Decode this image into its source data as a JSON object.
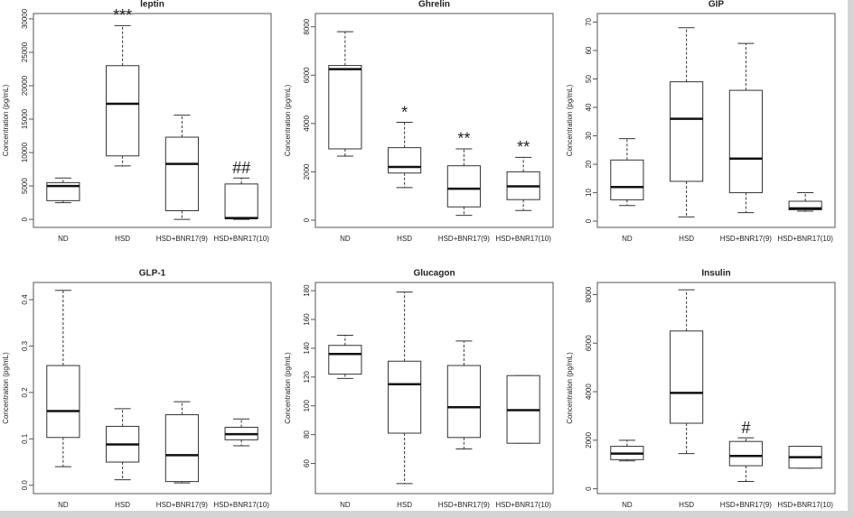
{
  "chart_data": [
    {
      "type": "box",
      "title": "leptin",
      "y_label": "Concentration (pg/mL)",
      "categories": [
        "ND",
        "HSD",
        "HSD+BNR17(9)",
        "HSD+BNR17(10)"
      ],
      "boxes": [
        {
          "whislo": 2500,
          "q1": 2800,
          "med": 5000,
          "q3": 5500,
          "whishi": 6200
        },
        {
          "whislo": 8000,
          "q1": 9500,
          "med": 17300,
          "q3": 23000,
          "whishi": 29000
        },
        {
          "whislo": 0,
          "q1": 1300,
          "med": 8300,
          "q3": 12300,
          "whishi": 15600
        },
        {
          "whislo": 0,
          "q1": 100,
          "med": 200,
          "q3": 5300,
          "whishi": 6200
        }
      ],
      "marks": [
        null,
        "***",
        null,
        "##"
      ],
      "ylim": [
        -1200,
        30800
      ],
      "yticks": [
        0,
        5000,
        10000,
        15000,
        20000,
        25000,
        30000
      ]
    },
    {
      "type": "box",
      "title": "Ghrelin",
      "y_label": "Concentration (pg/mL)",
      "categories": [
        "ND",
        "HSD",
        "HSD+BNR17(9)",
        "HSD+BNR17(10)"
      ],
      "boxes": [
        {
          "whislo": 2650,
          "q1": 2950,
          "med": 6250,
          "q3": 6400,
          "whishi": 7800
        },
        {
          "whislo": 1350,
          "q1": 1950,
          "med": 2200,
          "q3": 3000,
          "whishi": 4050
        },
        {
          "whislo": 200,
          "q1": 550,
          "med": 1300,
          "q3": 2250,
          "whishi": 2950
        },
        {
          "whislo": 400,
          "q1": 850,
          "med": 1400,
          "q3": 2000,
          "whishi": 2600
        }
      ],
      "marks": [
        null,
        "*",
        "**",
        "**"
      ],
      "ylim": [
        -300,
        8550
      ],
      "yticks": [
        0,
        2000,
        4000,
        6000,
        8000
      ]
    },
    {
      "type": "box",
      "title": "GIP",
      "y_label": "Concentration (pg/mL)",
      "categories": [
        "ND",
        "HSD",
        "HSD+BNR17(9)",
        "HSD+BNR17(10)"
      ],
      "boxes": [
        {
          "whislo": 5.5,
          "q1": 7.5,
          "med": 12,
          "q3": 21.5,
          "whishi": 29
        },
        {
          "whislo": 1.5,
          "q1": 14,
          "med": 36,
          "q3": 49,
          "whishi": 68
        },
        {
          "whislo": 3,
          "q1": 10,
          "med": 22,
          "q3": 46,
          "whishi": 62.5
        },
        {
          "whislo": 3.5,
          "q1": 4,
          "med": 4.5,
          "q3": 7,
          "whishi": 10
        }
      ],
      "marks": [
        null,
        null,
        null,
        null
      ],
      "ylim": [
        -2.2,
        73
      ],
      "yticks": [
        0,
        10,
        20,
        30,
        40,
        50,
        60,
        70
      ]
    },
    {
      "type": "box",
      "title": "GLP-1",
      "y_label": "Concentration (pg/mL)",
      "categories": [
        "ND",
        "HSD",
        "HSD+BNR17(9)",
        "HSD+BNR17(10)"
      ],
      "boxes": [
        {
          "whislo": 0.04,
          "q1": 0.103,
          "med": 0.16,
          "q3": 0.258,
          "whishi": 0.42
        },
        {
          "whislo": 0.012,
          "q1": 0.05,
          "med": 0.088,
          "q3": 0.127,
          "whishi": 0.165
        },
        {
          "whislo": 0.005,
          "q1": 0.008,
          "med": 0.065,
          "q3": 0.152,
          "whishi": 0.18
        },
        {
          "whislo": 0.085,
          "q1": 0.098,
          "med": 0.11,
          "q3": 0.125,
          "whishi": 0.143
        }
      ],
      "marks": [
        null,
        null,
        null,
        null
      ],
      "ylim": [
        -0.018,
        0.437
      ],
      "yticks": [
        {
          "value": 0,
          "label": "0.0"
        },
        0.1,
        0.2,
        0.3,
        0.4
      ]
    },
    {
      "type": "box",
      "title": "Glucagon",
      "y_label": "Concentration (pg/mL)",
      "categories": [
        "ND",
        "HSD",
        "HSD+BNR17(9)",
        "HSD+BNR17(10)"
      ],
      "boxes": [
        {
          "whislo": 119,
          "q1": 122,
          "med": 136,
          "q3": 142,
          "whishi": 149
        },
        {
          "whislo": 46,
          "q1": 81,
          "med": 115,
          "q3": 131,
          "whishi": 179
        },
        {
          "whislo": 70,
          "q1": 78,
          "med": 99,
          "q3": 128,
          "whishi": 145
        },
        {
          "whislo": 74,
          "q1": 74,
          "med": 97,
          "q3": 121,
          "whishi": 121
        }
      ],
      "marks": [
        null,
        null,
        null,
        null
      ],
      "ylim": [
        39,
        185.7
      ],
      "yticks": [
        60,
        80,
        100,
        120,
        140,
        160,
        180
      ]
    },
    {
      "type": "box",
      "title": "Insulin",
      "y_label": "Concentration (pg/mL)",
      "categories": [
        "ND",
        "HSD",
        "HSD+BNR17(9)",
        "HSD+BNR17(10)"
      ],
      "boxes": [
        {
          "whislo": 1150,
          "q1": 1200,
          "med": 1450,
          "q3": 1750,
          "whishi": 2000
        },
        {
          "whislo": 1450,
          "q1": 2700,
          "med": 3950,
          "q3": 6500,
          "whishi": 8200
        },
        {
          "whislo": 300,
          "q1": 950,
          "med": 1350,
          "q3": 1950,
          "whishi": 2100
        },
        {
          "whislo": 850,
          "q1": 850,
          "med": 1300,
          "q3": 1750,
          "whishi": 1750
        }
      ],
      "marks": [
        null,
        null,
        "#",
        null
      ],
      "ylim": [
        -200,
        8500
      ],
      "yticks": [
        0,
        2000,
        4000,
        6000,
        8000
      ]
    }
  ]
}
